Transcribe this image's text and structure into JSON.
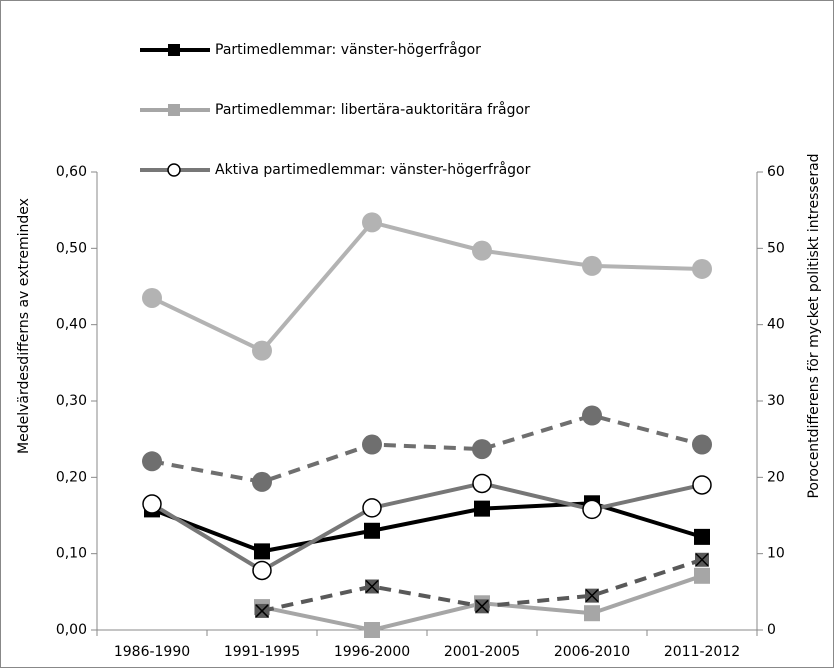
{
  "chart_data": {
    "type": "line",
    "y_label": "Medelvärdesdifferns av extremindex",
    "y2_label": "Porocentdifferens för mycket politiskt intresserad",
    "categories": [
      "1986-1990",
      "1991-1995",
      "1996-2000",
      "2001-2005",
      "2006-2010",
      "2011-2012"
    ],
    "ylim": [
      0,
      0.6
    ],
    "yticks": [
      {
        "value": 0,
        "label": "0,00"
      },
      {
        "value": 0.1,
        "label": "0,10"
      },
      {
        "value": 0.2,
        "label": "0,20"
      },
      {
        "value": 0.3,
        "label": "0,30"
      },
      {
        "value": 0.4,
        "label": "0,40"
      },
      {
        "value": 0.5,
        "label": "0,50"
      },
      {
        "value": 0.6,
        "label": "0,60"
      }
    ],
    "y2lim": [
      0,
      60
    ],
    "y2ticks": [
      0,
      10,
      20,
      30,
      40,
      50,
      60
    ],
    "series": [
      {
        "name": "Partimedlemmar: vänster-högerfrågor",
        "color": "#000000",
        "marker": "square",
        "values": [
          0.158,
          0.103,
          0.13,
          0.159,
          0.166,
          0.122
        ]
      },
      {
        "name": "Partimedlemmar: libertära-auktoritära frågor",
        "color": "#a6a6a6",
        "marker": "square",
        "values": [
          null,
          0.03,
          0.0,
          0.035,
          0.022,
          0.071
        ]
      },
      {
        "name": "Aktiva partimedlemmar: vänster-högerfrågor",
        "color": "#777777",
        "marker": "open-circle",
        "values": [
          0.165,
          0.078,
          0.16,
          0.192,
          0.158,
          0.19
        ]
      },
      {
        "color": "#b3b3b3",
        "marker": "circle",
        "axis": "y2",
        "values": [
          43.5,
          36.6,
          53.4,
          49.7,
          47.7,
          47.3
        ]
      },
      {
        "color": "#6f6f6f",
        "marker": "circle",
        "dash": true,
        "axis": "y2",
        "values": [
          22.1,
          19.4,
          24.3,
          23.7,
          28.1,
          24.3
        ]
      },
      {
        "color": "#595959",
        "marker": "x-square",
        "dash": true,
        "axis": "y2",
        "values": [
          null,
          2.5,
          5.7,
          3.1,
          4.5,
          9.2
        ]
      }
    ]
  }
}
